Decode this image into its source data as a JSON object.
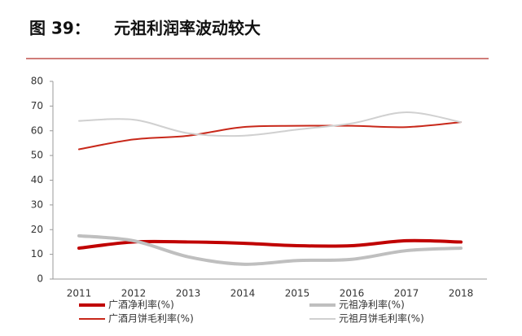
{
  "chart_data": {
    "type": "line",
    "figure_label": "图 39：",
    "title": "元祖利润率波动较大",
    "categories": [
      "2011",
      "2012",
      "2013",
      "2014",
      "2015",
      "2016",
      "2017",
      "2018"
    ],
    "series": [
      {
        "name": "广酒净利率(%)",
        "color": "#c00000",
        "line_width": 4,
        "values": [
          12.5,
          15,
          15,
          14.5,
          13.5,
          13.5,
          15.5,
          15
        ]
      },
      {
        "name": "元祖净利率(%)",
        "color": "#bfbfbf",
        "line_width": 4,
        "values": [
          17.5,
          15.5,
          9,
          6,
          7.5,
          8,
          11.5,
          12.5
        ]
      },
      {
        "name": "广酒月饼毛利率(%)",
        "color": "#c8281a",
        "line_width": 2,
        "values": [
          52.5,
          56.5,
          58,
          61.5,
          62,
          62,
          61.5,
          63.5
        ]
      },
      {
        "name": "元祖月饼毛利率(%)",
        "color": "#d0d0d0",
        "line_width": 2,
        "values": [
          64,
          64.5,
          59,
          58,
          60.5,
          63,
          67.5,
          63.5
        ]
      }
    ],
    "ylim": [
      0,
      80
    ],
    "yticks": [
      0,
      10,
      20,
      30,
      40,
      50,
      60,
      70,
      80
    ],
    "grid": false
  }
}
